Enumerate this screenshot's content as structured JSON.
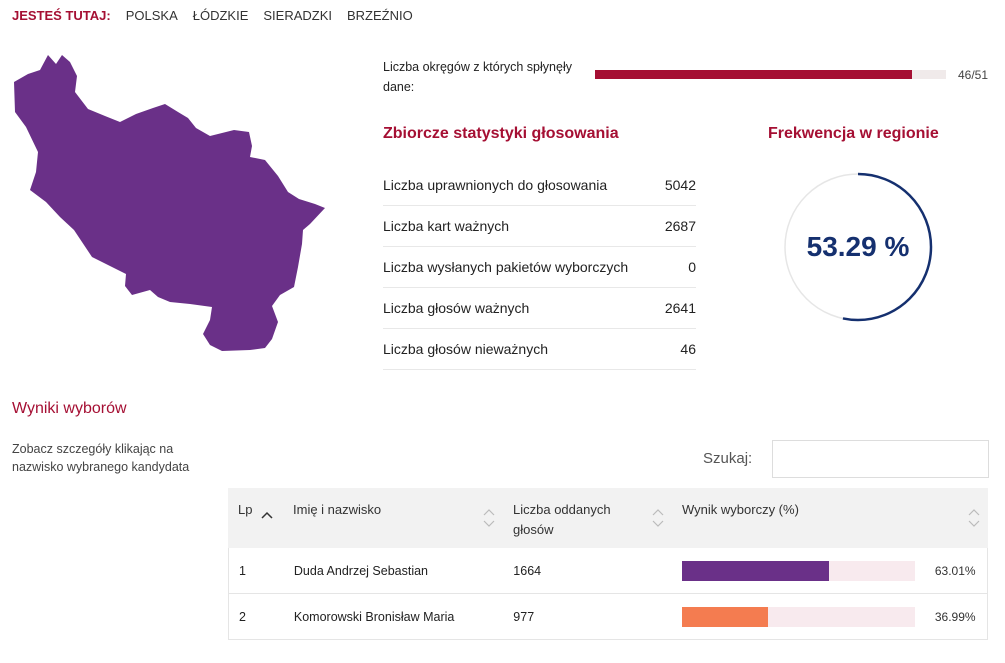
{
  "breadcrumb": {
    "here_label": "JESTEŚ TUTAJ:",
    "items": [
      "POLSKA",
      "ŁÓDZKIE",
      "SIERADZKI",
      "BRZEŹNIO"
    ]
  },
  "progress": {
    "label": "Liczba okręgów z których spłynęły dane:",
    "count_text": "46/51",
    "fraction": 0.902
  },
  "stats": {
    "title": "Zbiorcze statystyki głosowania",
    "rows": [
      {
        "label": "Liczba uprawnionych do głosowania",
        "value": "5042"
      },
      {
        "label": "Liczba kart ważnych",
        "value": "2687"
      },
      {
        "label": "Liczba wysłanych pakietów wyborczych",
        "value": "0"
      },
      {
        "label": "Liczba głosów ważnych",
        "value": "2641"
      },
      {
        "label": "Liczba głosów nieważnych",
        "value": "46"
      }
    ]
  },
  "turnout": {
    "title": "Frekwencja w regionie",
    "value_text": "53.29 %",
    "fraction": 0.5329
  },
  "results": {
    "title": "Wyniki wyborów",
    "hint": "Zobacz szczegóły klikając na nazwisko wybranego kandydata",
    "search_label": "Szukaj:",
    "search_value": "",
    "columns": [
      "Lp",
      "Imię i nazwisko",
      "Liczba oddanych głosów",
      "Wynik wyborczy (%)"
    ],
    "rows": [
      {
        "lp": "1",
        "name": "Duda Andrzej Sebastian",
        "votes": "1664",
        "pct_text": "63.01%",
        "pct": 63.01,
        "color": "#6a3088"
      },
      {
        "lp": "2",
        "name": "Komorowski Bronisław Maria",
        "votes": "977",
        "pct_text": "36.99%",
        "pct": 36.99,
        "color": "#f47c50"
      }
    ]
  },
  "colors": {
    "accent": "#a50f33",
    "map_fill": "#6a3088",
    "turnout_ring": "#15306f"
  }
}
